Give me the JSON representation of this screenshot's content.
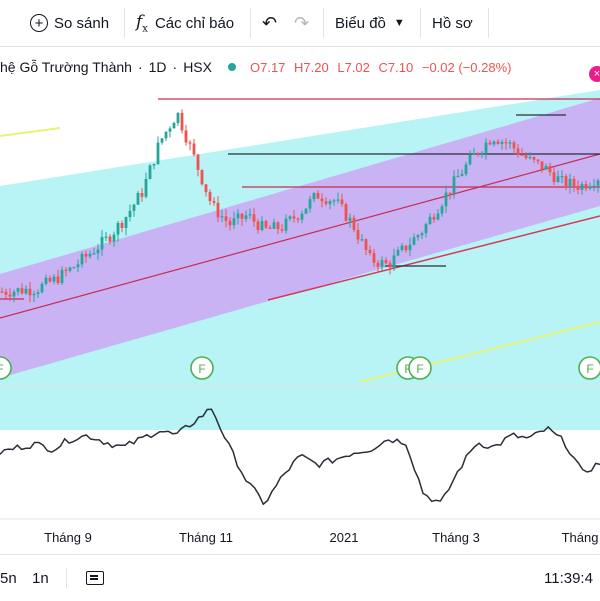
{
  "toolbar": {
    "compare_label": "So sánh",
    "indicators_label": "Các chỉ báo",
    "chart_type_label": "Biểu đồ",
    "profile_label": "Hồ sơ"
  },
  "legend": {
    "symbol": "hệ Gỗ Trường Thành",
    "interval": "1D",
    "exchange": "HSX",
    "open": "O7.17",
    "high": "H7.20",
    "low": "L7.02",
    "close": "C7.10",
    "change": "−0.02 (−0.28%)",
    "status_color": "#26a69a"
  },
  "bottombar": {
    "range_5d": "5n",
    "range_1m": "1n",
    "time": "11:39:4"
  },
  "chart_data": {
    "type": "candlestick",
    "x_tick_labels": [
      "Tháng 9",
      "Tháng 11",
      "2021",
      "Tháng 3",
      "Tháng"
    ],
    "price_series_approx": [
      7.9,
      7.95,
      8.0,
      8.3,
      8.7,
      9.2,
      9.7,
      10.4,
      11.3,
      13.0,
      14.0,
      12.4,
      10.8,
      10.2,
      10.5,
      10.0,
      10.1,
      10.6,
      11.2,
      11.0,
      10.2,
      9.0,
      8.8,
      9.4,
      10.0,
      10.9,
      11.8,
      12.6,
      13.2,
      12.9,
      12.4,
      12.1,
      11.6,
      11.5,
      11.8
    ],
    "oscillator_series_approx": [
      52,
      55,
      57,
      54,
      60,
      62,
      58,
      55,
      60,
      65,
      62,
      70,
      78,
      55,
      35,
      22,
      38,
      50,
      45,
      48,
      52,
      54,
      60,
      58,
      28,
      22,
      42,
      58,
      55,
      62,
      60,
      66,
      58,
      40,
      46
    ],
    "event_markers": [
      "F",
      "F",
      "F",
      "F",
      "F"
    ],
    "colors": {
      "up": "#26a69a",
      "down": "#ef5350",
      "channel_inner": "#c9b3f5",
      "channel_outer": "#b8f4f5",
      "oscillator": "#2a2e39"
    }
  }
}
